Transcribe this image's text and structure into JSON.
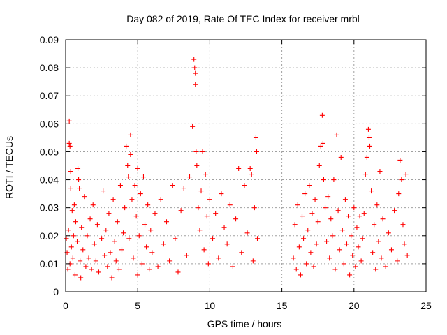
{
  "chart_data": {
    "type": "scatter",
    "title": "Day 082 of 2019, Rate Of TEC Index for receiver mrbl",
    "xlabel": "GPS time / hours",
    "ylabel": "ROTI / TECUs",
    "xlim": [
      0,
      25
    ],
    "ylim": [
      0,
      0.09
    ],
    "xticks": [
      0,
      5,
      10,
      15,
      20,
      25
    ],
    "yticks": [
      0,
      0.01,
      0.02,
      0.03,
      0.04,
      0.05,
      0.06,
      0.07,
      0.08,
      0.09
    ],
    "grid": true,
    "marker": "+",
    "colors": {
      "points": "#ff0000",
      "grid": "#a0a0a0",
      "axes": "#000000"
    },
    "series": [
      {
        "points": [
          [
            0.05,
            0.019
          ],
          [
            0.1,
            0.014
          ],
          [
            0.15,
            0.008
          ],
          [
            0.2,
            0.022
          ],
          [
            0.25,
            0.061
          ],
          [
            0.25,
            0.053
          ],
          [
            0.3,
            0.052
          ],
          [
            0.3,
            0.01
          ],
          [
            0.35,
            0.043
          ],
          [
            0.35,
            0.037
          ],
          [
            0.4,
            0.016
          ],
          [
            0.45,
            0.029
          ],
          [
            0.5,
            0.012
          ],
          [
            0.55,
            0.02
          ],
          [
            0.6,
            0.031
          ],
          [
            0.65,
            0.006
          ],
          [
            0.7,
            0.025
          ],
          [
            0.8,
            0.018
          ],
          [
            0.85,
            0.044
          ],
          [
            0.9,
            0.04
          ],
          [
            0.95,
            0.037
          ],
          [
            1.0,
            0.011
          ],
          [
            1.05,
            0.005
          ],
          [
            1.1,
            0.023
          ],
          [
            1.2,
            0.015
          ],
          [
            1.3,
            0.034
          ],
          [
            1.4,
            0.009
          ],
          [
            1.5,
            0.02
          ],
          [
            1.6,
            0.012
          ],
          [
            1.7,
            0.026
          ],
          [
            1.8,
            0.008
          ],
          [
            1.9,
            0.031
          ],
          [
            2.0,
            0.017
          ],
          [
            2.1,
            0.011
          ],
          [
            2.2,
            0.024
          ],
          [
            2.3,
            0.007
          ],
          [
            2.5,
            0.019
          ],
          [
            2.6,
            0.036
          ],
          [
            2.7,
            0.013
          ],
          [
            2.8,
            0.022
          ],
          [
            2.9,
            0.009
          ],
          [
            3.0,
            0.028
          ],
          [
            3.1,
            0.014
          ],
          [
            3.2,
            0.005
          ],
          [
            3.3,
            0.033
          ],
          [
            3.4,
            0.018
          ],
          [
            3.5,
            0.011
          ],
          [
            3.6,
            0.025
          ],
          [
            3.7,
            0.008
          ],
          [
            3.8,
            0.038
          ],
          [
            3.9,
            0.015
          ],
          [
            4.0,
            0.021
          ],
          [
            4.1,
            0.03
          ],
          [
            4.2,
            0.052
          ],
          [
            4.3,
            0.045
          ],
          [
            4.35,
            0.041
          ],
          [
            4.4,
            0.019
          ],
          [
            4.5,
            0.056
          ],
          [
            4.5,
            0.049
          ],
          [
            4.6,
            0.033
          ],
          [
            4.7,
            0.012
          ],
          [
            4.8,
            0.038
          ],
          [
            4.9,
            0.027
          ],
          [
            5.0,
            0.006
          ],
          [
            5.0,
            0.044
          ],
          [
            5.1,
            0.02
          ],
          [
            5.2,
            0.035
          ],
          [
            5.3,
            0.01
          ],
          [
            5.4,
            0.041
          ],
          [
            5.5,
            0.024
          ],
          [
            5.6,
            0.016
          ],
          [
            5.7,
            0.031
          ],
          [
            5.8,
            0.008
          ],
          [
            5.9,
            0.022
          ],
          [
            6.0,
            0.014
          ],
          [
            6.2,
            0.028
          ],
          [
            6.4,
            0.009
          ],
          [
            6.6,
            0.033
          ],
          [
            6.8,
            0.017
          ],
          [
            7.0,
            0.025
          ],
          [
            7.2,
            0.011
          ],
          [
            7.4,
            0.038
          ],
          [
            7.6,
            0.019
          ],
          [
            7.8,
            0.007
          ],
          [
            8.0,
            0.029
          ],
          [
            8.2,
            0.037
          ],
          [
            8.4,
            0.013
          ],
          [
            8.6,
            0.041
          ],
          [
            8.8,
            0.059
          ],
          [
            8.9,
            0.083
          ],
          [
            8.95,
            0.08
          ],
          [
            9.0,
            0.078
          ],
          [
            9.0,
            0.074
          ],
          [
            9.05,
            0.05
          ],
          [
            9.1,
            0.045
          ],
          [
            9.2,
            0.03
          ],
          [
            9.3,
            0.022
          ],
          [
            9.4,
            0.036
          ],
          [
            9.5,
            0.05
          ],
          [
            9.6,
            0.015
          ],
          [
            9.7,
            0.042
          ],
          [
            9.8,
            0.027
          ],
          [
            9.9,
            0.01
          ],
          [
            10.0,
            0.033
          ],
          [
            10.2,
            0.019
          ],
          [
            10.4,
            0.028
          ],
          [
            10.6,
            0.012
          ],
          [
            10.8,
            0.035
          ],
          [
            11.0,
            0.023
          ],
          [
            11.2,
            0.017
          ],
          [
            11.4,
            0.031
          ],
          [
            11.6,
            0.009
          ],
          [
            11.8,
            0.026
          ],
          [
            12.0,
            0.044
          ],
          [
            12.2,
            0.014
          ],
          [
            12.4,
            0.038
          ],
          [
            12.6,
            0.021
          ],
          [
            12.8,
            0.044
          ],
          [
            12.9,
            0.042
          ],
          [
            13.0,
            0.011
          ],
          [
            13.1,
            0.03
          ],
          [
            13.2,
            0.055
          ],
          [
            13.25,
            0.05
          ],
          [
            13.3,
            0.019
          ],
          [
            15.8,
            0.012
          ],
          [
            15.9,
            0.024
          ],
          [
            16.0,
            0.008
          ],
          [
            16.1,
            0.031
          ],
          [
            16.2,
            0.016
          ],
          [
            16.3,
            0.006
          ],
          [
            16.4,
            0.027
          ],
          [
            16.5,
            0.019
          ],
          [
            16.6,
            0.035
          ],
          [
            16.7,
            0.01
          ],
          [
            16.8,
            0.022
          ],
          [
            16.9,
            0.038
          ],
          [
            17.0,
            0.014
          ],
          [
            17.1,
            0.028
          ],
          [
            17.2,
            0.009
          ],
          [
            17.3,
            0.033
          ],
          [
            17.4,
            0.017
          ],
          [
            17.5,
            0.025
          ],
          [
            17.6,
            0.045
          ],
          [
            17.7,
            0.052
          ],
          [
            17.8,
            0.063
          ],
          [
            17.85,
            0.053
          ],
          [
            17.9,
            0.04
          ],
          [
            18.0,
            0.03
          ],
          [
            18.1,
            0.018
          ],
          [
            18.2,
            0.034
          ],
          [
            18.3,
            0.012
          ],
          [
            18.4,
            0.026
          ],
          [
            18.5,
            0.02
          ],
          [
            18.6,
            0.04
          ],
          [
            18.7,
            0.008
          ],
          [
            18.8,
            0.056
          ],
          [
            18.9,
            0.029
          ],
          [
            19.0,
            0.015
          ],
          [
            19.1,
            0.048
          ],
          [
            19.2,
            0.022
          ],
          [
            19.3,
            0.01
          ],
          [
            19.4,
            0.033
          ],
          [
            19.5,
            0.017
          ],
          [
            19.6,
            0.027
          ],
          [
            19.7,
            0.006
          ],
          [
            19.8,
            0.02
          ],
          [
            19.9,
            0.013
          ],
          [
            20.0,
            0.03
          ],
          [
            20.1,
            0.009
          ],
          [
            20.2,
            0.023
          ],
          [
            20.3,
            0.016
          ],
          [
            20.4,
            0.027
          ],
          [
            20.5,
            0.011
          ],
          [
            20.6,
            0.019
          ],
          [
            20.7,
            0.028
          ],
          [
            20.8,
            0.042
          ],
          [
            20.9,
            0.048
          ],
          [
            21.0,
            0.058
          ],
          [
            21.05,
            0.055
          ],
          [
            21.1,
            0.052
          ],
          [
            21.2,
            0.036
          ],
          [
            21.3,
            0.014
          ],
          [
            21.4,
            0.024
          ],
          [
            21.5,
            0.008
          ],
          [
            21.6,
            0.031
          ],
          [
            21.7,
            0.018
          ],
          [
            21.8,
            0.043
          ],
          [
            21.9,
            0.012
          ],
          [
            22.0,
            0.026
          ],
          [
            22.2,
            0.009
          ],
          [
            22.4,
            0.021
          ],
          [
            22.6,
            0.015
          ],
          [
            22.8,
            0.029
          ],
          [
            23.0,
            0.011
          ],
          [
            23.1,
            0.035
          ],
          [
            23.2,
            0.047
          ],
          [
            23.3,
            0.04
          ],
          [
            23.4,
            0.024
          ],
          [
            23.5,
            0.017
          ],
          [
            23.6,
            0.042
          ],
          [
            23.7,
            0.013
          ]
        ]
      }
    ]
  }
}
